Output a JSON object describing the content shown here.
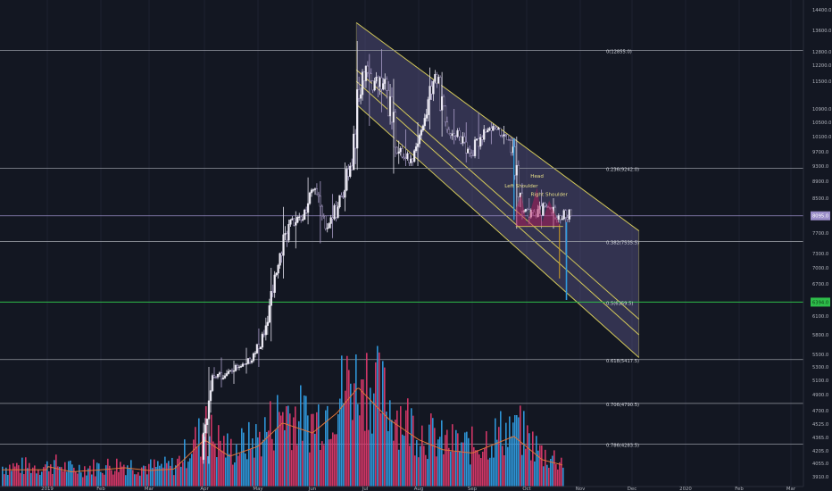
{
  "chart_data": {
    "type": "candlestick",
    "symbol_price_label": "8095.0",
    "green_price_label": "6394.0",
    "x_labels": [
      "2019",
      "Feb",
      "Mar",
      "Apr",
      "May",
      "Jun",
      "Jul",
      "Aug",
      "Sep",
      "Oct",
      "Nov",
      "Dec",
      "2020",
      "Feb",
      "Mar"
    ],
    "y_ticks": [
      {
        "value": 14400,
        "label": "14400.0"
      },
      {
        "value": 13600,
        "label": "13600.0"
      },
      {
        "value": 12800,
        "label": "12800.0"
      },
      {
        "value": 12200,
        "label": "12200.0"
      },
      {
        "value": 11500,
        "label": "11500.0"
      },
      {
        "value": 10900,
        "label": "10900.0"
      },
      {
        "value": 10500,
        "label": "10500.0"
      },
      {
        "value": 10100,
        "label": "10100.0"
      },
      {
        "value": 9700,
        "label": "9700.0"
      },
      {
        "value": 9300,
        "label": "9300.0"
      },
      {
        "value": 8900,
        "label": "8900.0"
      },
      {
        "value": 8500,
        "label": "8500.0"
      },
      {
        "value": 7700,
        "label": "7700.0"
      },
      {
        "value": 7300,
        "label": "7300.0"
      },
      {
        "value": 7000,
        "label": "7000.0"
      },
      {
        "value": 6700,
        "label": "6700.0"
      },
      {
        "value": 6100,
        "label": "6100.0"
      },
      {
        "value": 5800,
        "label": "5800.0"
      },
      {
        "value": 5500,
        "label": "5500.0"
      },
      {
        "value": 5300,
        "label": "5300.0"
      },
      {
        "value": 5100,
        "label": "5100.0"
      },
      {
        "value": 4900,
        "label": "4900.0"
      },
      {
        "value": 4700,
        "label": "4700.0"
      },
      {
        "value": 4525,
        "label": "4525.0"
      },
      {
        "value": 4365,
        "label": "4365.0"
      },
      {
        "value": 4205,
        "label": "4205.0"
      },
      {
        "value": 4055,
        "label": "4055.0"
      },
      {
        "value": 3910,
        "label": "3910.0"
      }
    ],
    "fib_levels": [
      {
        "label": "0(12855.0)",
        "value": 12855
      },
      {
        "label": "0.236(9242.0)",
        "value": 9242
      },
      {
        "label": "0.382(7535.5)",
        "value": 7535.5
      },
      {
        "label": "0.5(6359.5)",
        "value": 6359.5
      },
      {
        "label": "0.618(5417.5)",
        "value": 5417.5
      },
      {
        "label": "0.706(4790.5)",
        "value": 4790.5
      },
      {
        "label": "0.786(4283.5)",
        "value": 4283.5
      }
    ],
    "annotations": [
      {
        "text": "Left Shoulder",
        "date": "2019-09-28",
        "price": 8750
      },
      {
        "text": "Head",
        "date": "2019-10-07",
        "price": 9000
      },
      {
        "text": "Right Shoulder",
        "date": "2019-10-14",
        "price": 8550
      }
    ],
    "candles_weekly": [
      {
        "date": "2019-03-31",
        "o": 4100,
        "h": 5300,
        "l": 4050,
        "c": 5150
      },
      {
        "date": "2019-04-07",
        "o": 5150,
        "h": 5450,
        "l": 5000,
        "c": 5200
      },
      {
        "date": "2019-04-14",
        "o": 5200,
        "h": 5400,
        "l": 5050,
        "c": 5300
      },
      {
        "date": "2019-04-21",
        "o": 5300,
        "h": 5600,
        "l": 5200,
        "c": 5400
      },
      {
        "date": "2019-04-28",
        "o": 5400,
        "h": 5900,
        "l": 5300,
        "c": 5800
      },
      {
        "date": "2019-05-05",
        "o": 5800,
        "h": 7000,
        "l": 5700,
        "c": 6900
      },
      {
        "date": "2019-05-12",
        "o": 6900,
        "h": 8300,
        "l": 6800,
        "c": 7900
      },
      {
        "date": "2019-05-19",
        "o": 7900,
        "h": 8200,
        "l": 7400,
        "c": 8000
      },
      {
        "date": "2019-05-26",
        "o": 8000,
        "h": 9000,
        "l": 7900,
        "c": 8700
      },
      {
        "date": "2019-06-02",
        "o": 8700,
        "h": 8900,
        "l": 7500,
        "c": 7800
      },
      {
        "date": "2019-06-09",
        "o": 7800,
        "h": 8600,
        "l": 7600,
        "c": 8300
      },
      {
        "date": "2019-06-16",
        "o": 8300,
        "h": 9400,
        "l": 8200,
        "c": 9300
      },
      {
        "date": "2019-06-23",
        "o": 9300,
        "h": 13200,
        "l": 9200,
        "c": 11900
      },
      {
        "date": "2019-06-30",
        "o": 11900,
        "h": 12700,
        "l": 10400,
        "c": 11500
      },
      {
        "date": "2019-07-07",
        "o": 11500,
        "h": 12900,
        "l": 10800,
        "c": 11300
      },
      {
        "date": "2019-07-14",
        "o": 11300,
        "h": 11600,
        "l": 9100,
        "c": 9700
      },
      {
        "date": "2019-07-21",
        "o": 9700,
        "h": 10300,
        "l": 9300,
        "c": 9500
      },
      {
        "date": "2019-07-28",
        "o": 9500,
        "h": 10500,
        "l": 9300,
        "c": 10400
      },
      {
        "date": "2019-08-04",
        "o": 10400,
        "h": 12100,
        "l": 10300,
        "c": 11800
      },
      {
        "date": "2019-08-11",
        "o": 11800,
        "h": 11900,
        "l": 10100,
        "c": 10300
      },
      {
        "date": "2019-08-18",
        "o": 10300,
        "h": 10900,
        "l": 9900,
        "c": 10100
      },
      {
        "date": "2019-08-25",
        "o": 10100,
        "h": 10500,
        "l": 9400,
        "c": 9600
      },
      {
        "date": "2019-09-01",
        "o": 9600,
        "h": 10800,
        "l": 9500,
        "c": 10300
      },
      {
        "date": "2019-09-08",
        "o": 10300,
        "h": 10500,
        "l": 9900,
        "c": 10300
      },
      {
        "date": "2019-09-15",
        "o": 10300,
        "h": 10400,
        "l": 9900,
        "c": 10000
      },
      {
        "date": "2019-09-22",
        "o": 10000,
        "h": 10100,
        "l": 7800,
        "c": 8200
      },
      {
        "date": "2019-09-29",
        "o": 8200,
        "h": 8500,
        "l": 7900,
        "c": 8100
      },
      {
        "date": "2019-10-06",
        "o": 8100,
        "h": 8700,
        "l": 7800,
        "c": 8300
      },
      {
        "date": "2019-10-13",
        "o": 8300,
        "h": 8500,
        "l": 7800,
        "c": 8100
      },
      {
        "date": "2019-10-20",
        "o": 8100,
        "h": 8250,
        "l": 7300,
        "c": 8095
      }
    ],
    "volume_weekly": [
      {
        "date": "2019-01-01",
        "v": 30
      },
      {
        "date": "2019-01-15",
        "v": 22
      },
      {
        "date": "2019-02-01",
        "v": 25
      },
      {
        "date": "2019-02-15",
        "v": 28
      },
      {
        "date": "2019-03-01",
        "v": 24
      },
      {
        "date": "2019-03-15",
        "v": 26
      },
      {
        "date": "2019-04-01",
        "v": 70
      },
      {
        "date": "2019-04-15",
        "v": 45
      },
      {
        "date": "2019-05-01",
        "v": 60
      },
      {
        "date": "2019-05-15",
        "v": 95
      },
      {
        "date": "2019-06-01",
        "v": 80
      },
      {
        "date": "2019-06-15",
        "v": 110
      },
      {
        "date": "2019-06-27",
        "v": 148
      },
      {
        "date": "2019-07-15",
        "v": 100
      },
      {
        "date": "2019-08-01",
        "v": 70
      },
      {
        "date": "2019-08-15",
        "v": 55
      },
      {
        "date": "2019-09-01",
        "v": 50
      },
      {
        "date": "2019-09-24",
        "v": 75
      },
      {
        "date": "2019-10-10",
        "v": 40
      },
      {
        "date": "2019-10-25",
        "v": 30
      }
    ]
  }
}
